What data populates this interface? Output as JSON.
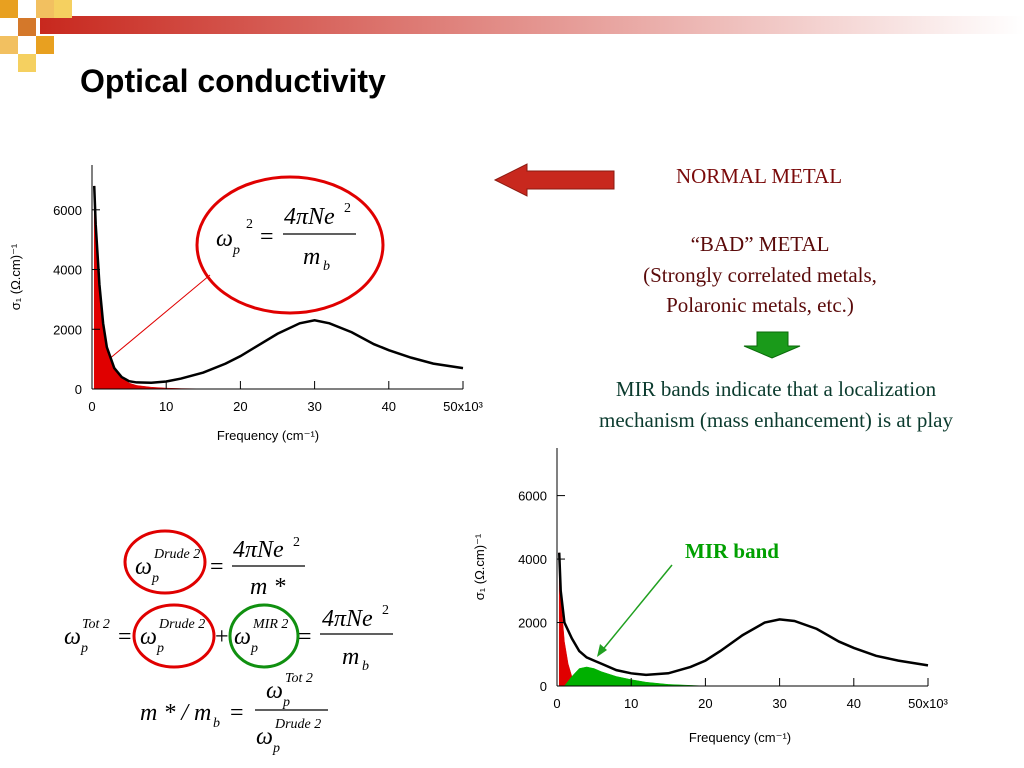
{
  "title": "Optical conductivity",
  "labels": {
    "normal_metal": "NORMAL METAL",
    "bad_metal": "“BAD” METAL",
    "bad_metal_detail": [
      "(Strongly correlated metals,",
      "Polaronic metals, etc.)"
    ],
    "mir_statement": [
      "MIR bands indicate that a localization",
      "mechanism (mass enhancement) is at play"
    ],
    "mir_band": "MIR band"
  },
  "equations": {
    "plasma": [
      "ω",
      "p",
      "2",
      "=",
      "4πNe",
      "2",
      "m",
      "b"
    ],
    "drude": [
      "ω",
      "p",
      "Drude 2",
      "=",
      "4πNe",
      "2",
      "m *"
    ],
    "total": [
      "ω",
      "p",
      "Tot 2",
      "=",
      "ω",
      "p",
      "Drude 2",
      "+",
      "ω",
      "p",
      "MIR 2",
      "=",
      "4πNe",
      "2",
      "m",
      "b"
    ],
    "mass": [
      "m * / m",
      "b",
      "=",
      "ω",
      "p",
      "Tot 2",
      "ω",
      "p",
      "Drude 2"
    ]
  },
  "chart_data": [
    {
      "type": "line",
      "xlabel": "Frequency (cm⁻¹)",
      "ylabel": "σ₁ (Ω.cm)⁻¹",
      "xlim": [
        0,
        50
      ],
      "ylim": [
        0,
        7500
      ],
      "xticks": [
        0,
        10,
        20,
        30,
        40,
        {
          "value": 50,
          "label": "50x10³"
        }
      ],
      "yticks": [
        0,
        2000,
        4000,
        6000
      ],
      "series": [
        {
          "color": "#e00000",
          "fill": true,
          "x": [
            0.3,
            0.5,
            1,
            1.5,
            2,
            3,
            4,
            5,
            6,
            8,
            10,
            12,
            15
          ],
          "values": [
            6800,
            5500,
            3500,
            2200,
            1400,
            700,
            400,
            200,
            120,
            60,
            30,
            15,
            5
          ]
        },
        {
          "color": "#000000",
          "fill": false,
          "x": [
            0.3,
            0.5,
            1,
            1.5,
            2,
            3,
            4,
            5,
            6,
            8,
            10,
            12,
            15,
            18,
            20,
            22,
            25,
            28,
            30,
            32,
            35,
            38,
            40,
            43,
            46,
            50
          ],
          "values": [
            6800,
            5500,
            3500,
            2200,
            1400,
            700,
            400,
            260,
            220,
            210,
            250,
            350,
            550,
            850,
            1100,
            1400,
            1850,
            2200,
            2300,
            2200,
            1900,
            1500,
            1300,
            1050,
            850,
            700
          ]
        }
      ]
    },
    {
      "type": "line",
      "xlabel": "Frequency (cm⁻¹)",
      "ylabel": "σ₁ (Ω.cm)⁻¹",
      "xlim": [
        0,
        50
      ],
      "ylim": [
        0,
        7500
      ],
      "xticks": [
        0,
        10,
        20,
        30,
        40,
        {
          "value": 50,
          "label": "50x10³"
        }
      ],
      "yticks": [
        0,
        2000,
        4000,
        6000
      ],
      "series": [
        {
          "color": "#e00000",
          "fill": true,
          "x": [
            0.3,
            0.5,
            1,
            1.5,
            2,
            3,
            4,
            5
          ],
          "values": [
            4200,
            2800,
            1400,
            700,
            300,
            100,
            30,
            0
          ]
        },
        {
          "color": "#00b000",
          "fill": true,
          "x": [
            1,
            2,
            3,
            4,
            5,
            6,
            8,
            10,
            12,
            15,
            18,
            20
          ],
          "values": [
            0,
            300,
            550,
            600,
            550,
            450,
            300,
            200,
            120,
            50,
            20,
            0
          ]
        },
        {
          "color": "#000000",
          "fill": false,
          "x": [
            0.3,
            0.5,
            1,
            2,
            3,
            4,
            5,
            6,
            8,
            10,
            12,
            15,
            18,
            20,
            22,
            25,
            28,
            30,
            32,
            35,
            38,
            40,
            43,
            46,
            50
          ],
          "values": [
            4200,
            3000,
            2000,
            1500,
            1100,
            900,
            800,
            700,
            500,
            400,
            350,
            400,
            600,
            800,
            1100,
            1600,
            2000,
            2100,
            2050,
            1800,
            1400,
            1200,
            950,
            800,
            650
          ]
        }
      ]
    }
  ]
}
